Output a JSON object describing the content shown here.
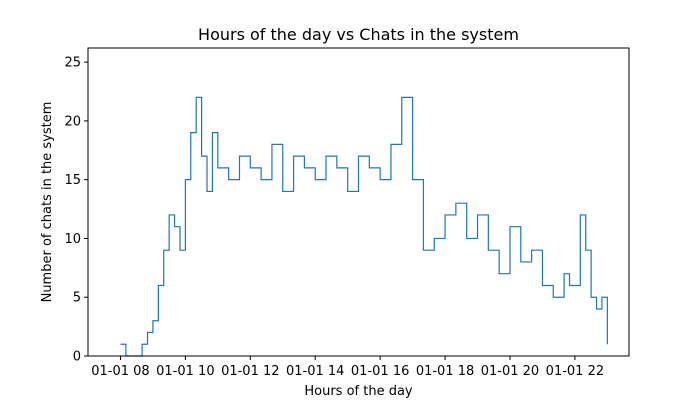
{
  "chart_data": {
    "type": "line",
    "title": "Hours of the day vs Chats in the system",
    "xlabel": "Hours of the day",
    "ylabel": "Number of chats in the system",
    "xlim": [
      "2023-01-01T07:00",
      "2023-01-01T23:40"
    ],
    "ylim": [
      0,
      26.2
    ],
    "x_ticks": [
      {
        "x": "2023-01-01T08:00",
        "label": "01-01 08"
      },
      {
        "x": "2023-01-01T10:00",
        "label": "01-01 10"
      },
      {
        "x": "2023-01-01T12:00",
        "label": "01-01 12"
      },
      {
        "x": "2023-01-01T14:00",
        "label": "01-01 14"
      },
      {
        "x": "2023-01-01T16:00",
        "label": "01-01 16"
      },
      {
        "x": "2023-01-01T18:00",
        "label": "01-01 18"
      },
      {
        "x": "2023-01-01T20:00",
        "label": "01-01 20"
      },
      {
        "x": "2023-01-01T22:00",
        "label": "01-01 22"
      }
    ],
    "y_ticks": [
      0,
      5,
      10,
      15,
      20,
      25
    ],
    "grid": false,
    "legend": "none",
    "series": [
      {
        "color": "#1f77b4",
        "x": [
          "2023-01-01T08:00",
          "2023-01-01T08:10",
          "2023-01-01T08:20",
          "2023-01-01T08:40",
          "2023-01-01T08:50",
          "2023-01-01T09:00",
          "2023-01-01T09:10",
          "2023-01-01T09:20",
          "2023-01-01T09:30",
          "2023-01-01T09:40",
          "2023-01-01T09:50",
          "2023-01-01T10:00",
          "2023-01-01T10:10",
          "2023-01-01T10:20",
          "2023-01-01T10:30",
          "2023-01-01T10:40",
          "2023-01-01T10:50",
          "2023-01-01T11:00",
          "2023-01-01T11:20",
          "2023-01-01T11:40",
          "2023-01-01T12:00",
          "2023-01-01T12:20",
          "2023-01-01T12:40",
          "2023-01-01T13:00",
          "2023-01-01T13:20",
          "2023-01-01T13:40",
          "2023-01-01T14:00",
          "2023-01-01T14:20",
          "2023-01-01T14:40",
          "2023-01-01T15:00",
          "2023-01-01T15:20",
          "2023-01-01T15:40",
          "2023-01-01T16:00",
          "2023-01-01T16:20",
          "2023-01-01T16:40",
          "2023-01-01T17:00",
          "2023-01-01T17:20",
          "2023-01-01T17:40",
          "2023-01-01T18:00",
          "2023-01-01T18:20",
          "2023-01-01T18:40",
          "2023-01-01T19:00",
          "2023-01-01T19:20",
          "2023-01-01T19:40",
          "2023-01-01T20:00",
          "2023-01-01T20:20",
          "2023-01-01T20:40",
          "2023-01-01T21:00",
          "2023-01-01T21:20",
          "2023-01-01T21:40",
          "2023-01-01T21:50",
          "2023-01-01T22:00",
          "2023-01-01T22:10",
          "2023-01-01T22:20",
          "2023-01-01T22:30",
          "2023-01-01T22:40",
          "2023-01-01T22:50",
          "2023-01-01T23:00"
        ],
        "y": [
          1,
          0,
          0,
          1,
          2,
          3,
          6,
          9,
          12,
          11,
          9,
          15,
          19,
          22,
          17,
          14,
          19,
          16,
          15,
          17,
          16,
          15,
          18,
          14,
          17,
          16,
          15,
          17,
          16,
          14,
          17,
          16,
          15,
          18,
          22,
          15,
          9,
          10,
          12,
          13,
          10,
          12,
          9,
          7,
          11,
          8,
          9,
          6,
          5,
          7,
          6,
          6,
          12,
          9,
          5,
          4,
          5,
          1
        ]
      }
    ]
  }
}
